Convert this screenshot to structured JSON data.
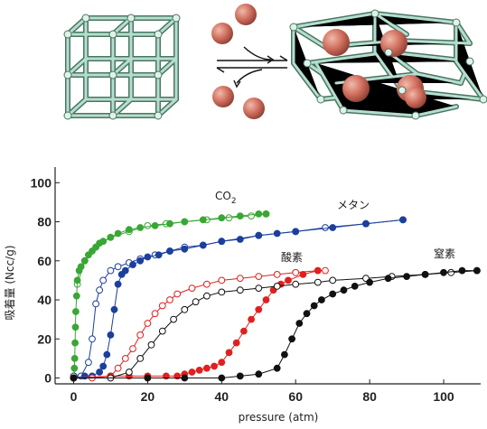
{
  "chart_data": {
    "type": "scatter",
    "title": "",
    "xlabel": "pressure (atm)",
    "ylabel": "吸着量 (Ncc/g)",
    "xlim": [
      -5,
      110
    ],
    "ylim": [
      -3,
      108
    ],
    "xticks": [
      0,
      20,
      40,
      60,
      80,
      100
    ],
    "yticks": [
      0,
      20,
      40,
      60,
      80,
      100
    ],
    "grid": false,
    "legend": "labels next to curves",
    "colors": {
      "co2": "#3aa635",
      "methane": "#1c3f9c",
      "oxygen": "#e02020",
      "nitrogen": "#111111"
    },
    "series": [
      {
        "name": "CO",
        "name_sub": "2",
        "key": "co2",
        "adsorption": [
          [
            0.1,
            1
          ],
          [
            0.2,
            5
          ],
          [
            0.3,
            10
          ],
          [
            0.4,
            18
          ],
          [
            0.5,
            26
          ],
          [
            0.6,
            34
          ],
          [
            0.8,
            42
          ],
          [
            1,
            50
          ],
          [
            1.5,
            55
          ],
          [
            2,
            57
          ],
          [
            3,
            60
          ],
          [
            4,
            63
          ],
          [
            5,
            65
          ],
          [
            6,
            67
          ],
          [
            7,
            69
          ],
          [
            8,
            70
          ],
          [
            10,
            72
          ],
          [
            12,
            74
          ],
          [
            15,
            76
          ],
          [
            18,
            77
          ],
          [
            22,
            78
          ],
          [
            26,
            79
          ],
          [
            30,
            80
          ],
          [
            35,
            81
          ],
          [
            40,
            82
          ],
          [
            45,
            83
          ],
          [
            50,
            84
          ],
          [
            52,
            84
          ]
        ],
        "desorption": [
          [
            1,
            48
          ],
          [
            3,
            60
          ],
          [
            6,
            67
          ],
          [
            10,
            72
          ],
          [
            15,
            75
          ],
          [
            20,
            78
          ],
          [
            25,
            79
          ],
          [
            30,
            80
          ],
          [
            36,
            81
          ],
          [
            42,
            82
          ],
          [
            48,
            83
          ],
          [
            52,
            84
          ]
        ]
      },
      {
        "name": "メタン",
        "key": "methane",
        "adsorption": [
          [
            0,
            0
          ],
          [
            3,
            1
          ],
          [
            5,
            1
          ],
          [
            7,
            3
          ],
          [
            8,
            6
          ],
          [
            9,
            12
          ],
          [
            10,
            22
          ],
          [
            11,
            35
          ],
          [
            12,
            48
          ],
          [
            13,
            53
          ],
          [
            14,
            55
          ],
          [
            16,
            58
          ],
          [
            18,
            60
          ],
          [
            20,
            62
          ],
          [
            23,
            63
          ],
          [
            26,
            65
          ],
          [
            30,
            66
          ],
          [
            35,
            68
          ],
          [
            40,
            70
          ],
          [
            45,
            71
          ],
          [
            50,
            73
          ],
          [
            55,
            74
          ],
          [
            60,
            75
          ],
          [
            70,
            77
          ],
          [
            79,
            79
          ],
          [
            89,
            81
          ]
        ],
        "desorption": [
          [
            0,
            1
          ],
          [
            2,
            1
          ],
          [
            4,
            8
          ],
          [
            5,
            20
          ],
          [
            6,
            38
          ],
          [
            7,
            45
          ],
          [
            8,
            50
          ],
          [
            10,
            55
          ],
          [
            12,
            57
          ],
          [
            15,
            59
          ],
          [
            18,
            61
          ],
          [
            22,
            63
          ],
          [
            26,
            65
          ],
          [
            30,
            67
          ],
          [
            35,
            68
          ],
          [
            40,
            70
          ],
          [
            50,
            73
          ],
          [
            60,
            75
          ],
          [
            68,
            77
          ],
          [
            79,
            79
          ],
          [
            89,
            81
          ]
        ]
      },
      {
        "name": "酸素",
        "key": "oxygen",
        "adsorption": [
          [
            0,
            0
          ],
          [
            10,
            1
          ],
          [
            15,
            1
          ],
          [
            20,
            1
          ],
          [
            25,
            1
          ],
          [
            28,
            1
          ],
          [
            30,
            2
          ],
          [
            32,
            3
          ],
          [
            34,
            4
          ],
          [
            36,
            5
          ],
          [
            38,
            6
          ],
          [
            40,
            8
          ],
          [
            42,
            13
          ],
          [
            44,
            18
          ],
          [
            46,
            24
          ],
          [
            48,
            30
          ],
          [
            50,
            35
          ],
          [
            52,
            40
          ],
          [
            54,
            45
          ],
          [
            56,
            48
          ],
          [
            58,
            50
          ],
          [
            62,
            53
          ],
          [
            66,
            55
          ]
        ],
        "desorption": [
          [
            0,
            0
          ],
          [
            5,
            0
          ],
          [
            10,
            1
          ],
          [
            12,
            5
          ],
          [
            14,
            10
          ],
          [
            16,
            15
          ],
          [
            18,
            22
          ],
          [
            20,
            28
          ],
          [
            22,
            33
          ],
          [
            24,
            37
          ],
          [
            26,
            40
          ],
          [
            28,
            43
          ],
          [
            32,
            46
          ],
          [
            36,
            48
          ],
          [
            40,
            50
          ],
          [
            45,
            51
          ],
          [
            50,
            52
          ],
          [
            55,
            53
          ],
          [
            60,
            54
          ],
          [
            66,
            55
          ],
          [
            68,
            55
          ]
        ]
      },
      {
        "name": "窒素",
        "key": "nitrogen",
        "adsorption": [
          [
            0,
            0
          ],
          [
            20,
            0
          ],
          [
            30,
            0
          ],
          [
            40,
            0
          ],
          [
            45,
            1
          ],
          [
            50,
            2
          ],
          [
            55,
            5
          ],
          [
            57,
            12
          ],
          [
            59,
            20
          ],
          [
            61,
            28
          ],
          [
            63,
            33
          ],
          [
            65,
            37
          ],
          [
            67,
            40
          ],
          [
            70,
            43
          ],
          [
            73,
            45
          ],
          [
            76,
            47
          ],
          [
            80,
            49
          ],
          [
            85,
            51
          ],
          [
            90,
            52
          ],
          [
            95,
            53
          ],
          [
            100,
            54
          ],
          [
            105,
            55
          ],
          [
            109,
            55
          ]
        ],
        "desorption": [
          [
            0,
            0
          ],
          [
            10,
            0
          ],
          [
            15,
            3
          ],
          [
            18,
            10
          ],
          [
            21,
            17
          ],
          [
            24,
            24
          ],
          [
            27,
            30
          ],
          [
            30,
            35
          ],
          [
            33,
            39
          ],
          [
            36,
            42
          ],
          [
            40,
            44
          ],
          [
            45,
            45
          ],
          [
            50,
            46
          ],
          [
            55,
            47
          ],
          [
            60,
            48
          ],
          [
            66,
            49
          ],
          [
            70,
            50
          ],
          [
            79,
            51
          ],
          [
            86,
            52
          ],
          [
            95,
            53
          ],
          [
            102,
            54
          ],
          [
            109,
            55
          ]
        ]
      }
    ]
  }
}
